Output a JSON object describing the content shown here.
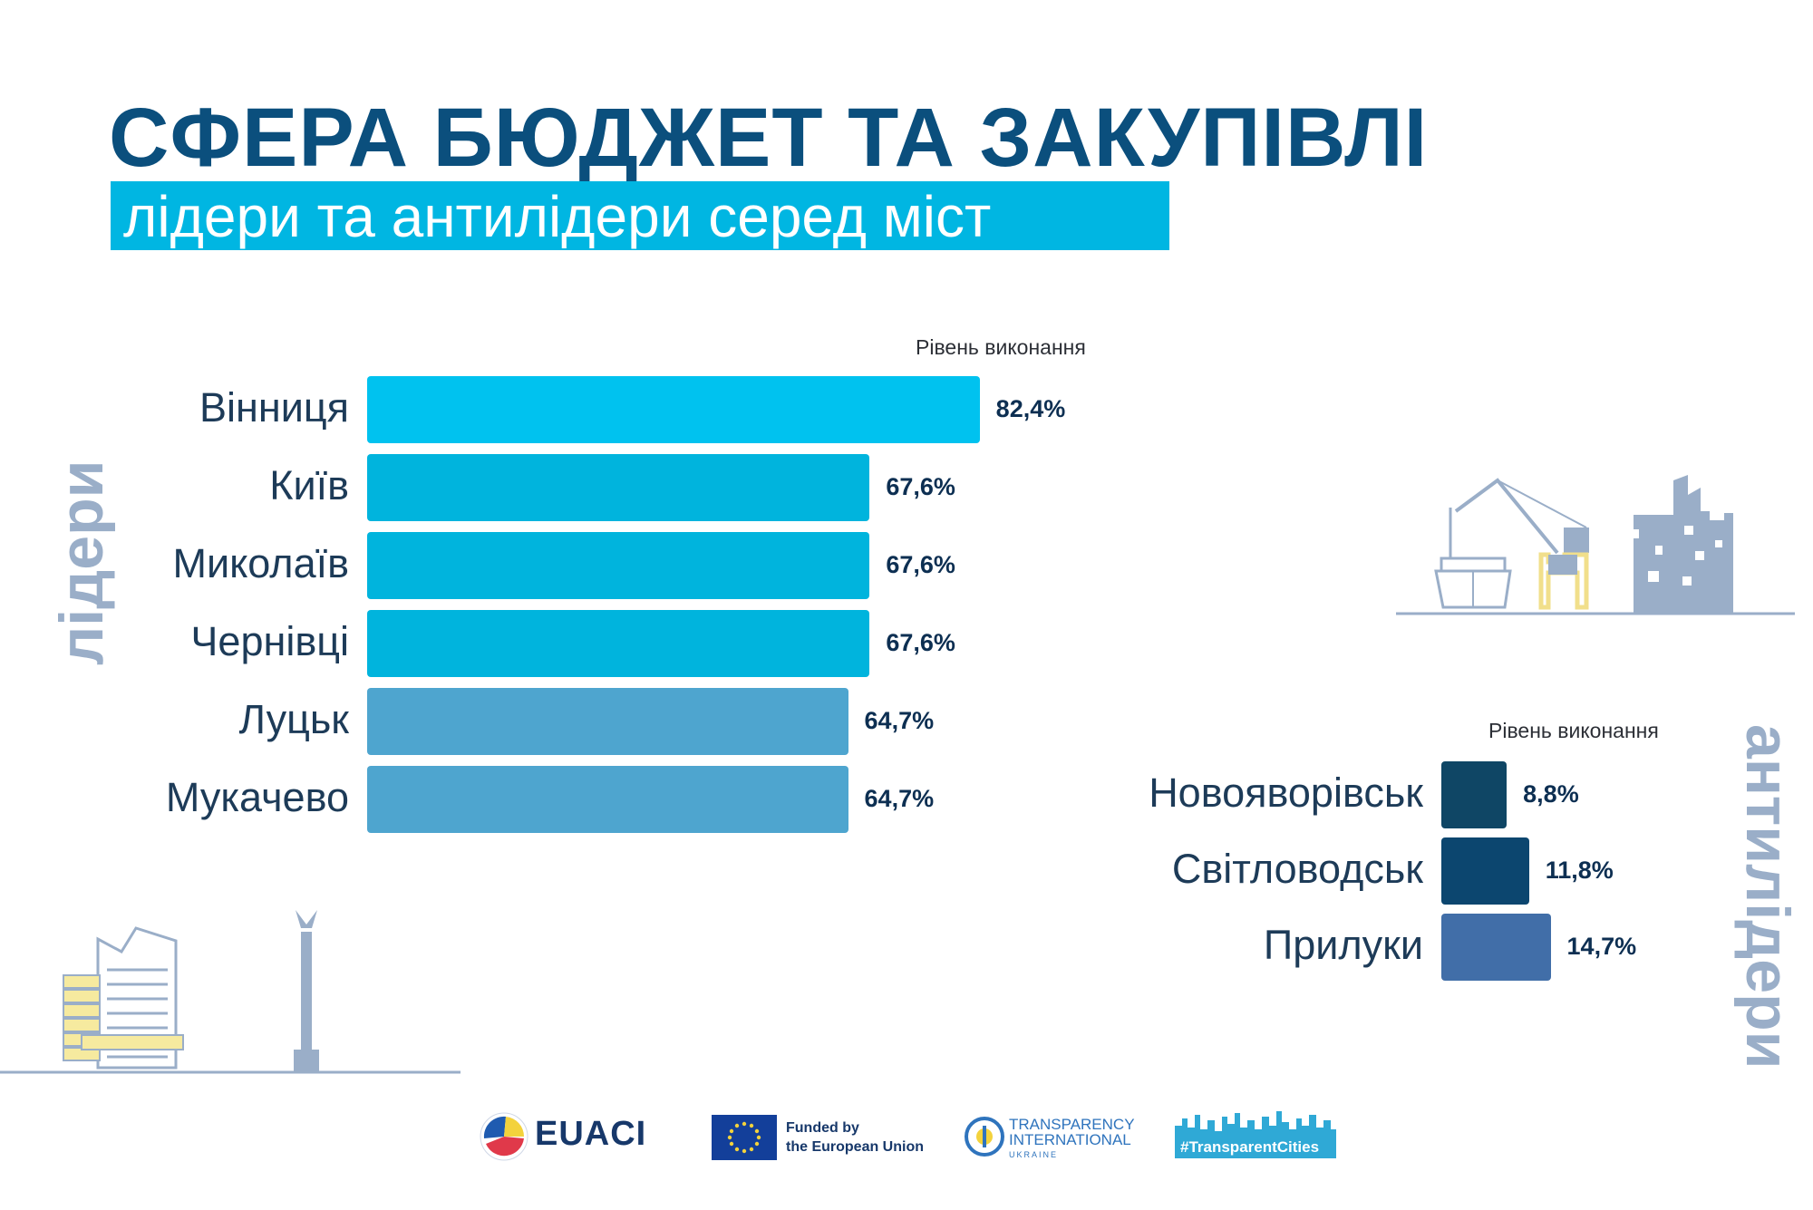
{
  "header": {
    "title": "СФЕРА БЮДЖЕТ ТА ЗАКУПІВЛІ",
    "subtitle": "лідери та антилідери серед міст"
  },
  "chart_data": [
    {
      "type": "bar",
      "orientation": "horizontal",
      "group_label": "лідери",
      "value_label": "Рівень виконання",
      "categories": [
        "Вінниця",
        "Київ",
        "Миколаїв",
        "Чернівці",
        "Луцьк",
        "Мукачево"
      ],
      "values": [
        82.4,
        67.6,
        67.6,
        67.6,
        64.7,
        64.7
      ],
      "value_labels": [
        "82,4%",
        "67,6%",
        "67,6%",
        "67,6%",
        "64,7%",
        "64,7%"
      ],
      "colors": [
        "#00c2ef",
        "#00b4dd",
        "#00b4dd",
        "#00b4dd",
        "#4ea5cf",
        "#4ea5cf"
      ],
      "xlim": [
        0,
        100
      ]
    },
    {
      "type": "bar",
      "orientation": "horizontal",
      "group_label": "антилідери",
      "value_label": "Рівень виконання",
      "categories": [
        "Новояворівськ",
        "Світловодськ",
        "Прилуки"
      ],
      "values": [
        8.8,
        11.8,
        14.7
      ],
      "value_labels": [
        "8,8%",
        "11,8%",
        "14,7%"
      ],
      "colors": [
        "#0f4665",
        "#0c466f",
        "#416ea8"
      ],
      "xlim": [
        0,
        100
      ]
    }
  ],
  "footer": {
    "euaci": "EUACI",
    "eu_line1": "Funded by",
    "eu_line2": "the European Union",
    "ti_line1": "TRANSPARENCY",
    "ti_line2": "INTERNATIONAL",
    "ti_line3": "UKRAINE",
    "hashtag": "#TransparentCities"
  },
  "icons": [
    "shipyard-crane-icon",
    "ruined-building-icon",
    "kyiv-buildings-icon",
    "independence-monument-icon",
    "euaci-logo-icon",
    "eu-flag-icon",
    "transparency-international-logo-icon",
    "transparent-cities-skyline-icon"
  ]
}
